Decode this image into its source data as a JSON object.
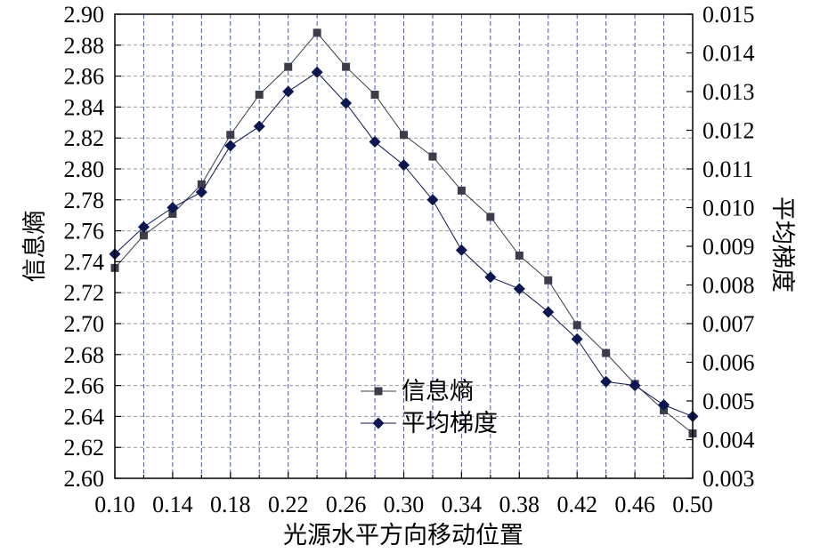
{
  "chart_data": {
    "type": "line",
    "title": "",
    "xlabel": "光源水平方向移动位置",
    "ylabel": "信息熵",
    "y2label": "平均梯度",
    "xlim": [
      0.1,
      0.5
    ],
    "ylim": [
      2.6,
      2.9
    ],
    "y2lim": [
      0.003,
      0.015
    ],
    "x_tick_labels": [
      "0.10",
      "0.14",
      "0.18",
      "0.22",
      "0.26",
      "0.30",
      "0.34",
      "0.38",
      "0.42",
      "0.46",
      "0.50"
    ],
    "y_tick_labels": [
      "2.60",
      "2.62",
      "2.64",
      "2.66",
      "2.68",
      "2.70",
      "2.72",
      "2.74",
      "2.76",
      "2.78",
      "2.80",
      "2.82",
      "2.84",
      "2.86",
      "2.88",
      "2.90"
    ],
    "y2_tick_labels": [
      "0.003",
      "0.004",
      "0.005",
      "0.006",
      "0.007",
      "0.008",
      "0.009",
      "0.010",
      "0.011",
      "0.012",
      "0.013",
      "0.014",
      "0.015"
    ],
    "grid": true,
    "legend": "bottom-center",
    "x": [
      0.1,
      0.12,
      0.14,
      0.16,
      0.18,
      0.2,
      0.22,
      0.24,
      0.26,
      0.28,
      0.3,
      0.32,
      0.34,
      0.36,
      0.38,
      0.4,
      0.42,
      0.44,
      0.46,
      0.48,
      0.5
    ],
    "series": [
      {
        "name": "信息熵",
        "axis": "left",
        "marker": "square",
        "color": "#3d3d4a",
        "values": [
          2.736,
          2.757,
          2.771,
          2.79,
          2.822,
          2.848,
          2.866,
          2.888,
          2.866,
          2.848,
          2.822,
          2.808,
          2.786,
          2.769,
          2.744,
          2.728,
          2.699,
          2.681,
          2.661,
          2.644,
          2.629
        ]
      },
      {
        "name": "平均梯度",
        "axis": "right",
        "marker": "diamond",
        "color": "#0c1650",
        "values": [
          0.0088,
          0.0095,
          0.01,
          0.0104,
          0.0116,
          0.0121,
          0.013,
          0.0135,
          0.0127,
          0.0117,
          0.0111,
          0.0102,
          0.0089,
          0.0082,
          0.0079,
          0.0073,
          0.0066,
          0.0055,
          0.0054,
          0.0049,
          0.0046
        ]
      }
    ],
    "colors": {
      "grid_x": "#3a5bc7",
      "grid_y": "#9a9a9a",
      "frame": "#000000"
    }
  }
}
